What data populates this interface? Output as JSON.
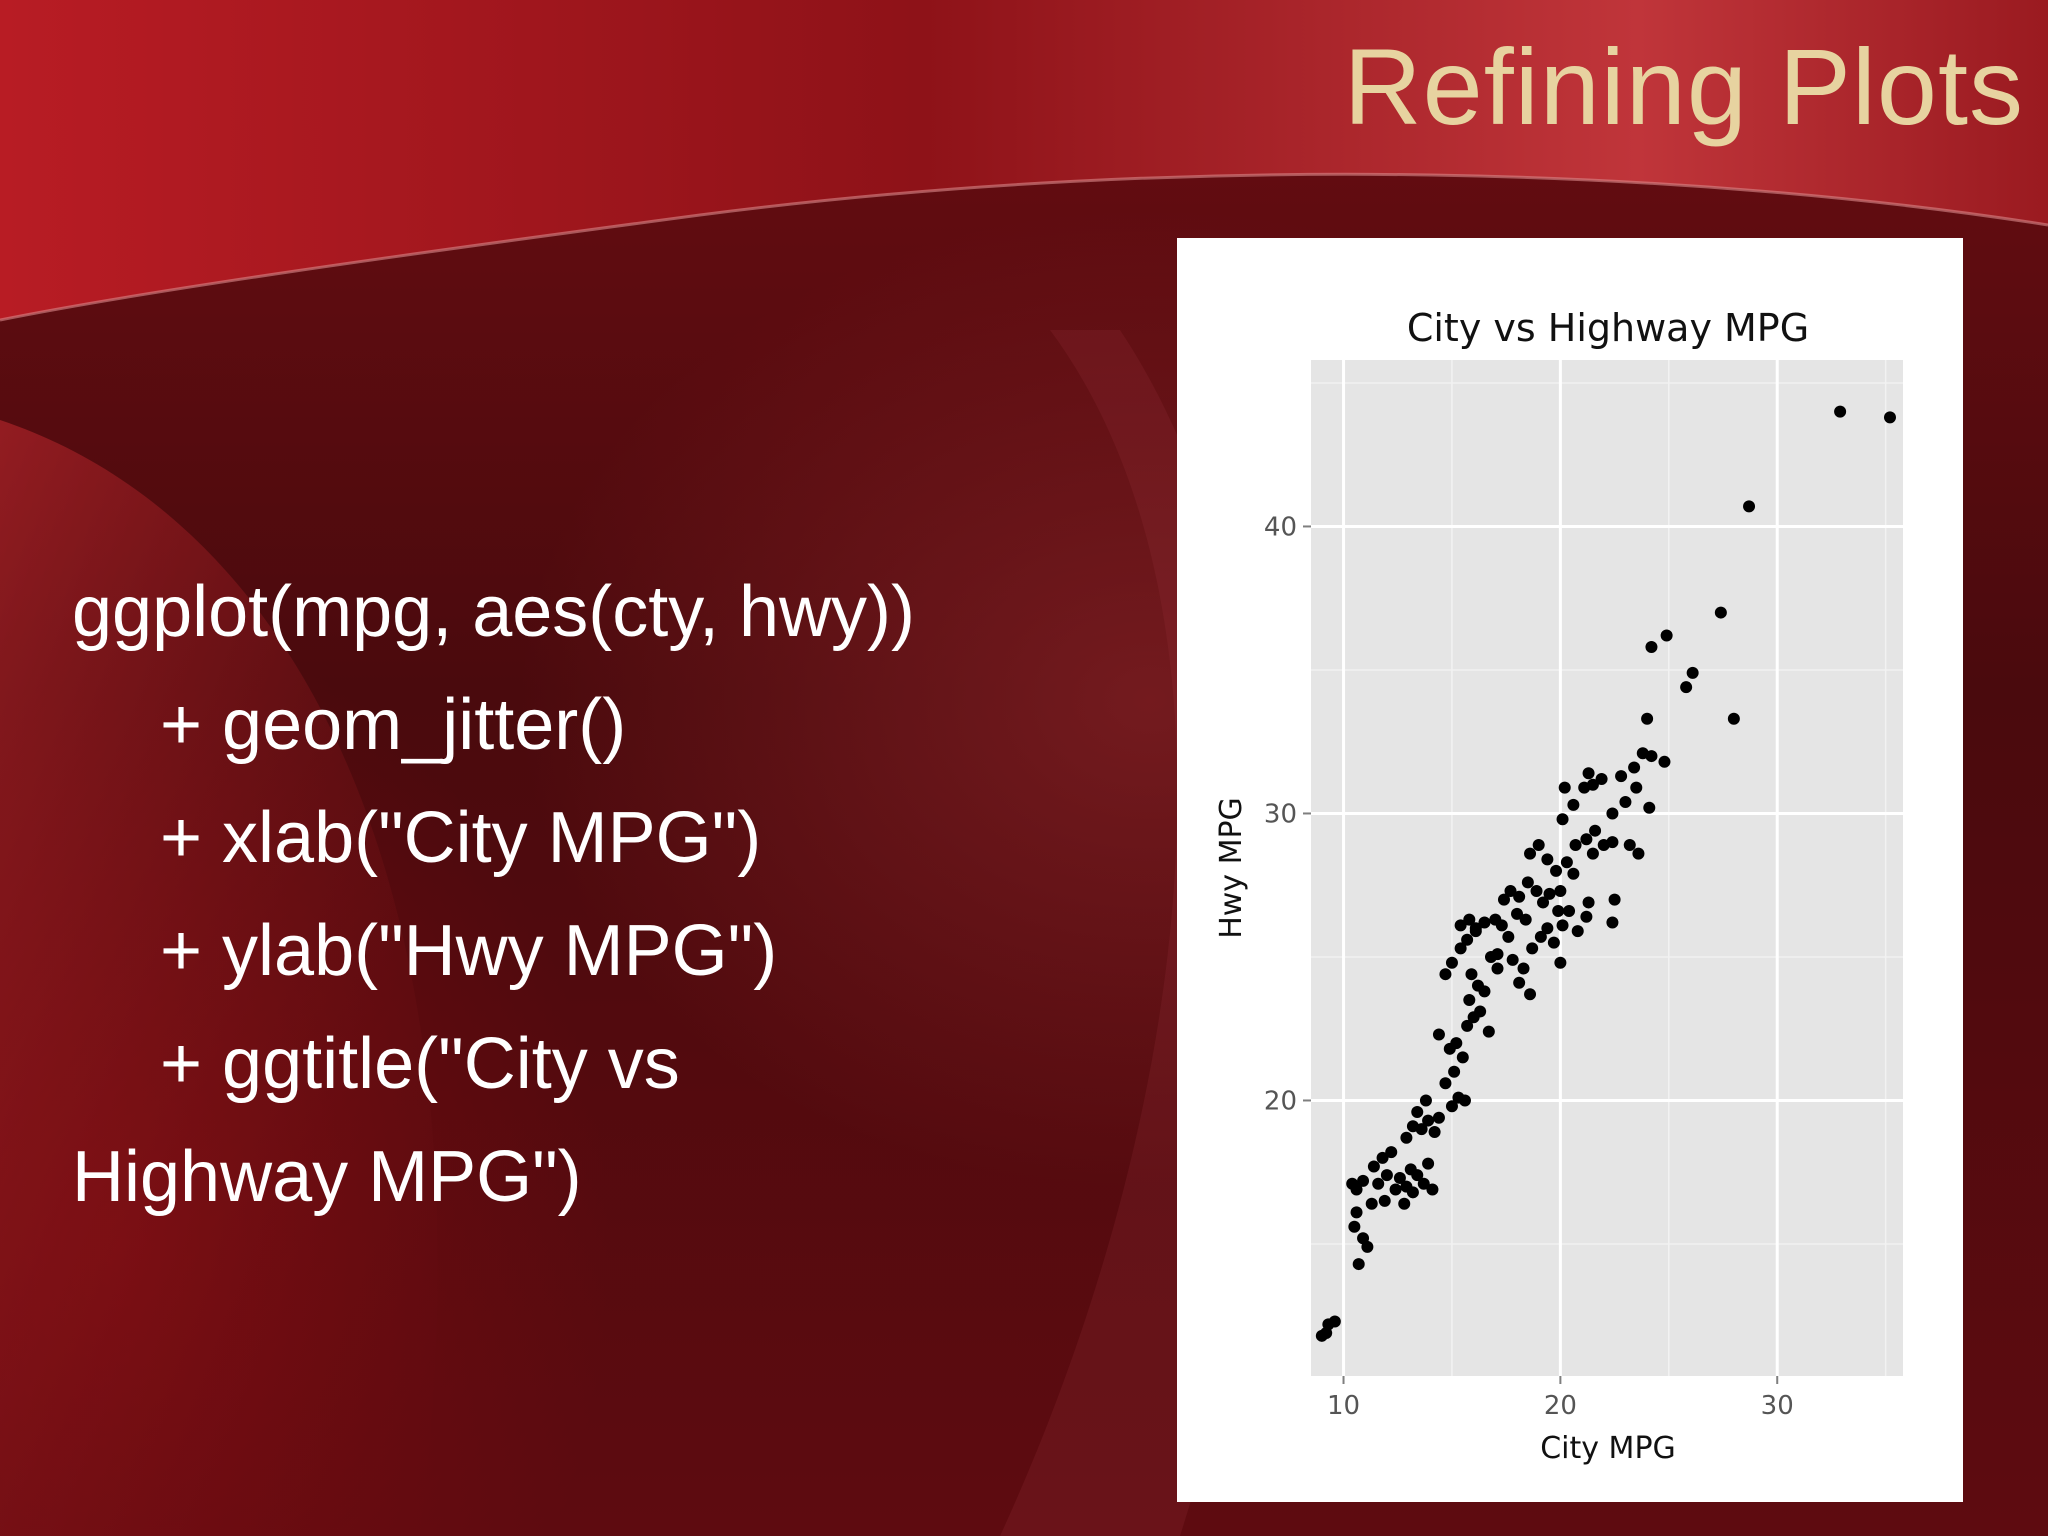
{
  "slide": {
    "title": "Refining Plots",
    "title_color": "#e7d3a0",
    "background_color": "#5e0b10",
    "code_lines": [
      "ggplot(mpg, aes(cty, hwy))",
      "+ geom_jitter()",
      "+ xlab(\"City MPG\")",
      "+ ylab(\"Hwy MPG\")",
      "+ ggtitle(\"City vs",
      "Highway MPG\")"
    ]
  },
  "chart_data": {
    "type": "scatter",
    "title": "City vs Highway MPG",
    "xlabel": "City MPG",
    "ylabel": "Hwy MPG",
    "xlim": [
      8.5,
      35.8
    ],
    "ylim": [
      10.4,
      45.8
    ],
    "xticks": [
      10,
      20,
      30
    ],
    "yticks": [
      20,
      30,
      40
    ],
    "grid": true,
    "panel_color": "#e5e5e5",
    "point_color": "#000000",
    "series": [
      {
        "points": [
          [
            9.0,
            11.8
          ],
          [
            9.3,
            12.2
          ],
          [
            9.6,
            12.3
          ],
          [
            9.2,
            11.9
          ],
          [
            10.4,
            17.1
          ],
          [
            10.6,
            16.9
          ],
          [
            10.9,
            17.2
          ],
          [
            10.6,
            16.1
          ],
          [
            10.9,
            15.2
          ],
          [
            11.1,
            14.9
          ],
          [
            10.7,
            14.3
          ],
          [
            10.5,
            15.6
          ],
          [
            11.4,
            17.7
          ],
          [
            11.8,
            18.0
          ],
          [
            12.2,
            18.2
          ],
          [
            12.0,
            17.4
          ],
          [
            11.9,
            16.5
          ],
          [
            12.4,
            16.9
          ],
          [
            11.6,
            17.1
          ],
          [
            11.3,
            16.4
          ],
          [
            12.6,
            17.3
          ],
          [
            12.9,
            17.0
          ],
          [
            13.1,
            17.6
          ],
          [
            12.8,
            16.4
          ],
          [
            13.2,
            16.8
          ],
          [
            13.4,
            17.4
          ],
          [
            13.7,
            17.1
          ],
          [
            13.9,
            17.8
          ],
          [
            14.1,
            16.9
          ],
          [
            12.9,
            18.7
          ],
          [
            13.2,
            19.1
          ],
          [
            13.6,
            19.0
          ],
          [
            13.9,
            19.3
          ],
          [
            14.2,
            18.9
          ],
          [
            13.4,
            19.6
          ],
          [
            13.8,
            20.0
          ],
          [
            14.4,
            19.4
          ],
          [
            15.0,
            19.8
          ],
          [
            15.3,
            20.1
          ],
          [
            15.6,
            20.0
          ],
          [
            14.7,
            20.6
          ],
          [
            15.1,
            21.0
          ],
          [
            14.9,
            21.8
          ],
          [
            15.2,
            22.0
          ],
          [
            15.5,
            21.5
          ],
          [
            14.4,
            22.3
          ],
          [
            15.7,
            22.6
          ],
          [
            16.0,
            22.9
          ],
          [
            16.3,
            23.1
          ],
          [
            15.8,
            23.5
          ],
          [
            16.2,
            24.0
          ],
          [
            16.5,
            23.8
          ],
          [
            15.9,
            24.4
          ],
          [
            16.7,
            22.4
          ],
          [
            14.7,
            24.4
          ],
          [
            15.0,
            24.8
          ],
          [
            15.4,
            25.3
          ],
          [
            15.7,
            25.6
          ],
          [
            16.1,
            25.9
          ],
          [
            16.5,
            26.2
          ],
          [
            16.8,
            25.0
          ],
          [
            17.1,
            24.6
          ],
          [
            15.4,
            26.1
          ],
          [
            15.8,
            26.3
          ],
          [
            16.1,
            26.0
          ],
          [
            17.0,
            26.3
          ],
          [
            17.3,
            26.1
          ],
          [
            17.6,
            25.7
          ],
          [
            18.0,
            26.5
          ],
          [
            18.4,
            26.3
          ],
          [
            17.4,
            27.0
          ],
          [
            17.7,
            27.3
          ],
          [
            18.1,
            27.1
          ],
          [
            18.5,
            27.6
          ],
          [
            18.9,
            27.3
          ],
          [
            19.2,
            26.9
          ],
          [
            19.5,
            27.2
          ],
          [
            19.9,
            26.6
          ],
          [
            17.1,
            25.1
          ],
          [
            17.8,
            24.9
          ],
          [
            18.3,
            24.6
          ],
          [
            18.7,
            25.3
          ],
          [
            19.1,
            25.7
          ],
          [
            19.4,
            26.0
          ],
          [
            19.7,
            25.5
          ],
          [
            18.1,
            24.1
          ],
          [
            18.6,
            23.7
          ],
          [
            20.1,
            26.1
          ],
          [
            20.4,
            26.6
          ],
          [
            20.8,
            25.9
          ],
          [
            21.2,
            26.4
          ],
          [
            20.0,
            27.3
          ],
          [
            20.6,
            27.9
          ],
          [
            21.3,
            26.9
          ],
          [
            22.5,
            27.0
          ],
          [
            22.4,
            26.2
          ],
          [
            20.0,
            24.8
          ],
          [
            18.6,
            28.6
          ],
          [
            19.0,
            28.9
          ],
          [
            19.4,
            28.4
          ],
          [
            19.8,
            28.0
          ],
          [
            20.3,
            28.3
          ],
          [
            20.7,
            28.9
          ],
          [
            21.2,
            29.1
          ],
          [
            21.6,
            29.4
          ],
          [
            22.0,
            28.9
          ],
          [
            22.4,
            29.0
          ],
          [
            21.5,
            28.6
          ],
          [
            23.2,
            28.9
          ],
          [
            23.6,
            28.6
          ],
          [
            20.1,
            29.8
          ],
          [
            20.6,
            30.3
          ],
          [
            21.1,
            30.9
          ],
          [
            21.5,
            31.0
          ],
          [
            21.9,
            31.2
          ],
          [
            21.3,
            31.4
          ],
          [
            20.2,
            30.9
          ],
          [
            22.4,
            30.0
          ],
          [
            23.0,
            30.4
          ],
          [
            23.5,
            30.9
          ],
          [
            23.4,
            31.6
          ],
          [
            23.8,
            32.1
          ],
          [
            24.2,
            32.0
          ],
          [
            24.8,
            31.8
          ],
          [
            24.1,
            30.2
          ],
          [
            22.8,
            31.3
          ],
          [
            24.0,
            33.3
          ],
          [
            24.2,
            35.8
          ],
          [
            24.9,
            36.2
          ],
          [
            25.8,
            34.4
          ],
          [
            26.1,
            34.9
          ],
          [
            27.4,
            37.0
          ],
          [
            28.0,
            33.3
          ],
          [
            28.7,
            40.7
          ],
          [
            32.9,
            44.0
          ],
          [
            35.2,
            43.8
          ]
        ]
      }
    ]
  }
}
